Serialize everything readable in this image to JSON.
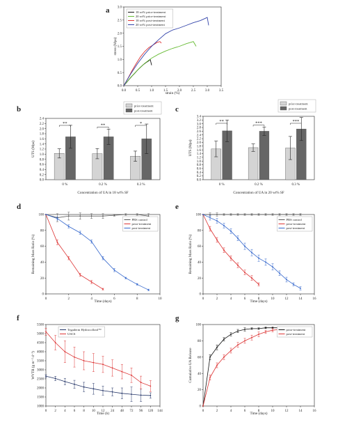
{
  "figure": {
    "panels": [
      {
        "id": "a",
        "letter": "a",
        "type": "line",
        "xlabel": "strain (%)",
        "ylabel": "stress (Mpa)",
        "xlim": [
          0,
          3.5
        ],
        "ylim": [
          0,
          3.0
        ],
        "xticks": [
          0,
          0.5,
          1,
          1.5,
          2,
          2.5,
          3,
          3.5
        ],
        "xtick_labels": [
          "0.0",
          "0.5",
          "1.0",
          "1.5",
          "2.0",
          "2.5",
          "3.0",
          "3.5"
        ],
        "yticks": [
          0,
          0.5,
          1,
          1.5,
          2,
          2.5,
          3
        ],
        "ytick_labels": [
          "0.0",
          "0.5",
          "1.0",
          "1.5",
          "2.0",
          "2.5",
          "3.0"
        ],
        "legend_position": "top-left",
        "series": [
          {
            "name": "18 wt% prior-treatment",
            "color": "#111111",
            "x": [
              0,
              0.1,
              0.2,
              0.3,
              0.4,
              0.5,
              0.6,
              0.7,
              0.8,
              0.9,
              0.95,
              1.0
            ],
            "y": [
              0,
              0.12,
              0.25,
              0.37,
              0.48,
              0.6,
              0.7,
              0.8,
              0.88,
              0.95,
              1.0,
              0.78
            ]
          },
          {
            "name": "20 wt% prior-treatment",
            "color": "#66bb33",
            "x": [
              0,
              0.25,
              0.5,
              0.75,
              1.0,
              1.25,
              1.5,
              1.75,
              2.0,
              2.25,
              2.5,
              2.6
            ],
            "y": [
              0,
              0.32,
              0.6,
              0.85,
              1.05,
              1.2,
              1.32,
              1.42,
              1.5,
              1.6,
              1.68,
              1.5
            ]
          },
          {
            "name": "18 wt% post-treatment",
            "color": "#dd3333",
            "x": [
              0,
              0.15,
              0.3,
              0.45,
              0.6,
              0.75,
              0.9,
              1.05,
              1.2,
              1.3,
              1.35
            ],
            "y": [
              0,
              0.28,
              0.58,
              0.85,
              1.1,
              1.3,
              1.45,
              1.55,
              1.65,
              1.68,
              1.62
            ]
          },
          {
            "name": "20 wt% post-treatment",
            "color": "#3344aa",
            "x": [
              0,
              0.25,
              0.5,
              0.75,
              1.0,
              1.25,
              1.5,
              1.75,
              2.0,
              2.25,
              2.5,
              2.75,
              3.0,
              3.05
            ],
            "y": [
              0,
              0.45,
              0.85,
              1.2,
              1.5,
              1.75,
              1.98,
              2.12,
              2.2,
              2.3,
              2.4,
              2.48,
              2.6,
              2.3
            ]
          }
        ]
      },
      {
        "id": "b",
        "letter": "b",
        "type": "bar",
        "xlabel": "Concentration of UA in 18 wt% SF",
        "ylabel": "UTS (Mpa)",
        "ylim": [
          0,
          2.4
        ],
        "yticks": [
          0,
          0.2,
          0.4,
          0.6,
          0.8,
          1.0,
          1.2,
          1.4,
          1.6,
          1.8,
          2.0,
          2.2,
          2.4
        ],
        "ytick_labels": [
          "0.0",
          "0.2",
          "0.4",
          "0.6",
          "0.8",
          "1.0",
          "1.2",
          "1.4",
          "1.6",
          "1.8",
          "2.0",
          "2.2",
          "2.4"
        ],
        "categories": [
          "0 %",
          "0.2 %",
          "0.3 %"
        ],
        "legend_position": "top-right",
        "series": [
          {
            "name": "prior-treatment",
            "color": "#d4d4d4",
            "values": [
              1.03,
              1.02,
              0.92
            ],
            "errors": [
              0.18,
              0.2,
              0.2
            ]
          },
          {
            "name": "post-treatment",
            "color": "#666666",
            "values": [
              1.68,
              1.68,
              1.6
            ],
            "errors": [
              0.45,
              0.3,
              0.58
            ]
          }
        ],
        "significance": [
          "**",
          "**",
          "*"
        ]
      },
      {
        "id": "c",
        "letter": "c",
        "type": "bar",
        "xlabel": "Concentration of UA in 20 wt% SF",
        "ylabel": "UTS (Mpa)",
        "ylim": [
          0,
          3.4
        ],
        "yticks": [
          0,
          0.2,
          0.4,
          0.6,
          0.8,
          1.0,
          1.2,
          1.4,
          1.6,
          1.8,
          2.0,
          2.2,
          2.4,
          2.6,
          2.8,
          3.0,
          3.2,
          3.4
        ],
        "ytick_labels": [
          "0.0",
          "0.2",
          "0.4",
          "0.6",
          "0.8",
          "1.0",
          "1.2",
          "1.4",
          "1.6",
          "1.8",
          "2.0",
          "2.2",
          "2.4",
          "2.6",
          "2.8",
          "3.0",
          "3.2",
          "3.4"
        ],
        "categories": [
          "0 %",
          "0.2 %",
          "0.3 %"
        ],
        "legend_position": "top-right",
        "series": [
          {
            "name": "prior-treatment",
            "color": "#d4d4d4",
            "values": [
              1.65,
              1.72,
              1.7
            ],
            "errors": [
              0.42,
              0.2,
              0.62
            ]
          },
          {
            "name": "post-treatment",
            "color": "#666666",
            "values": [
              2.62,
              2.6,
              2.72
            ],
            "errors": [
              0.58,
              0.22,
              0.62
            ]
          }
        ],
        "significance": [
          "**",
          "***",
          "***"
        ]
      },
      {
        "id": "d",
        "letter": "d",
        "type": "line",
        "xlabel": "Time (days)",
        "ylabel": "Remaining Mass Ratio (%)",
        "xlim": [
          0,
          10
        ],
        "ylim": [
          0,
          100
        ],
        "xticks": [
          0,
          2,
          4,
          6,
          8,
          10
        ],
        "xtick_labels": [
          "0",
          "2",
          "4",
          "6",
          "8",
          "10"
        ],
        "yticks": [
          0,
          20,
          40,
          60,
          80,
          100
        ],
        "ytick_labels": [
          "0",
          "20",
          "40",
          "60",
          "80",
          "100"
        ],
        "legend_position": "top-right",
        "series": [
          {
            "name": "PBS control",
            "color": "#555555",
            "x": [
              0,
              1,
              2,
              3,
              4,
              5,
              6,
              7,
              8,
              9
            ],
            "y": [
              100,
              96,
              98,
              98,
              98,
              98,
              99,
              100,
              100,
              98
            ],
            "err": [
              0,
              5,
              5,
              4,
              3,
              3,
              1,
              1,
              1,
              3
            ]
          },
          {
            "name": "prior-treatment",
            "color": "#dd3333",
            "x": [
              0,
              1,
              2,
              3,
              4,
              5
            ],
            "y": [
              100,
              65,
              45,
              24,
              15,
              6
            ],
            "err": [
              0,
              3,
              2,
              2,
              2,
              1
            ]
          },
          {
            "name": "post-treatment",
            "color": "#3366cc",
            "x": [
              0,
              1,
              2,
              3,
              4,
              5,
              6,
              7,
              8,
              9
            ],
            "y": [
              100,
              95,
              85,
              77,
              66,
              45,
              30,
              20,
              12,
              5
            ],
            "err": [
              0,
              2,
              2,
              2,
              2,
              2,
              2,
              1,
              1,
              1
            ]
          }
        ]
      },
      {
        "id": "e",
        "letter": "e",
        "type": "line",
        "xlabel": "Time (days)",
        "ylabel": "Remaining Mass Ratio (%)",
        "xlim": [
          0,
          16
        ],
        "ylim": [
          0,
          100
        ],
        "xticks": [
          0,
          2,
          4,
          6,
          8,
          10,
          12,
          14,
          16
        ],
        "xtick_labels": [
          "0",
          "2",
          "4",
          "6",
          "8",
          "10",
          "12",
          "14",
          "16"
        ],
        "yticks": [
          0,
          20,
          40,
          60,
          80,
          100
        ],
        "ytick_labels": [
          "0",
          "20",
          "40",
          "60",
          "80",
          "100"
        ],
        "legend_position": "top-right",
        "series": [
          {
            "name": "PBS control",
            "color": "#555555",
            "x": [
              0,
              1,
              2,
              3,
              4,
              5,
              6,
              7,
              8,
              9,
              10,
              11,
              12,
              13,
              14
            ],
            "y": [
              100,
              100,
              100,
              100,
              100,
              100,
              100,
              100,
              100,
              100,
              100,
              100,
              100,
              100,
              100
            ],
            "err": [
              0,
              2,
              2,
              1,
              1,
              1,
              1,
              1,
              1,
              1,
              1,
              1,
              1,
              1,
              1
            ]
          },
          {
            "name": "prior-treatment",
            "color": "#dd3333",
            "x": [
              0,
              1,
              2,
              3,
              4,
              5,
              6,
              7,
              8
            ],
            "y": [
              100,
              82,
              68,
              55,
              45,
              36,
              27,
              20,
              12
            ],
            "err": [
              0,
              3,
              3,
              3,
              3,
              3,
              3,
              3,
              2
            ]
          },
          {
            "name": "post-treatment",
            "color": "#3366cc",
            "x": [
              0,
              1,
              2,
              3,
              4,
              5,
              6,
              7,
              8,
              9,
              10,
              11,
              12,
              13,
              14
            ],
            "y": [
              100,
              96,
              92,
              86,
              79,
              70,
              60,
              52,
              45,
              40,
              34,
              26,
              18,
              12,
              7
            ],
            "err": [
              0,
              3,
              3,
              3,
              3,
              3,
              4,
              4,
              4,
              4,
              4,
              3,
              3,
              2,
              2
            ]
          }
        ]
      },
      {
        "id": "f",
        "letter": "f",
        "type": "line",
        "xlabel": "Time (h)",
        "ylabel": "WVTR (g m⁻² d⁻¹)",
        "xlim": [
          0,
          144
        ],
        "ylim": [
          1000,
          5500
        ],
        "xticks": [
          0,
          12,
          24,
          36,
          48,
          60,
          72,
          84,
          96,
          108,
          120,
          132,
          144
        ],
        "xtick_labels": [
          "0",
          "2",
          "4",
          "6",
          "8",
          "10",
          "12",
          "24",
          "48",
          "72",
          "96",
          "120",
          "144"
        ],
        "yticks": [
          1000,
          1500,
          2000,
          2500,
          3000,
          3500,
          4000,
          4500,
          5000,
          5500
        ],
        "ytick_labels": [
          "1000",
          "1500",
          "2000",
          "2500",
          "3000",
          "3500",
          "4000",
          "4500",
          "5000",
          "5500"
        ],
        "legend_position": "top-right",
        "series": [
          {
            "name": "Tegaderm Hydrocolloid™",
            "color": "#223366",
            "x": [
              0,
              12,
              24,
              36,
              48,
              60,
              72,
              84,
              96,
              108,
              120,
              132
            ],
            "y": [
              2650,
              2520,
              2350,
              2200,
              2050,
              1950,
              1850,
              1780,
              1700,
              1650,
              1600,
              1580
            ],
            "err": [
              80,
              120,
              180,
              220,
              260,
              300,
              250,
              220,
              300,
              400,
              350,
              150
            ]
          },
          {
            "name": "USCS",
            "color": "#dd3333",
            "x": [
              0,
              12,
              24,
              36,
              48,
              60,
              72,
              84,
              96,
              108,
              120,
              132
            ],
            "y": [
              5100,
              4500,
              4000,
              3700,
              3500,
              3400,
              3300,
              3100,
              2900,
              2700,
              2300,
              2100
            ],
            "err": [
              200,
              400,
              600,
              550,
              500,
              500,
              450,
              450,
              400,
              400,
              350,
              300
            ]
          }
        ]
      },
      {
        "id": "g",
        "letter": "g",
        "type": "line",
        "xlabel": "Time (days)",
        "ylabel": "Cumulative UA Release",
        "xlim": [
          0,
          16
        ],
        "ylim": [
          0,
          100
        ],
        "xticks": [
          0,
          2,
          4,
          6,
          8,
          10,
          12,
          14,
          16
        ],
        "xtick_labels": [
          "0",
          "2",
          "4",
          "6",
          "8",
          "10",
          "12",
          "14",
          "16"
        ],
        "yticks": [
          0,
          20,
          40,
          60,
          80,
          100
        ],
        "ytick_labels": [
          "0",
          "20",
          "40",
          "60",
          "80",
          "100"
        ],
        "legend_position": "top-right",
        "series": [
          {
            "name": "prior-treatment",
            "color": "#111111",
            "x": [
              0,
              1,
              2,
              3,
              4,
              5,
              6,
              7,
              8,
              9,
              10,
              11,
              12,
              13,
              14
            ],
            "y": [
              0,
              60,
              72,
              82,
              88,
              92,
              94,
              95,
              95,
              96,
              96,
              96,
              96,
              96,
              96
            ],
            "err": [
              0,
              3,
              3,
              2,
              2,
              2,
              2,
              1,
              1,
              1,
              1,
              1,
              1,
              1,
              1
            ]
          },
          {
            "name": "post-treatment",
            "color": "#dd3333",
            "x": [
              0,
              1,
              2,
              3,
              4,
              5,
              6,
              7,
              8,
              9,
              10,
              11,
              12,
              13,
              14
            ],
            "y": [
              0,
              35,
              50,
              60,
              68,
              75,
              80,
              84,
              88,
              91,
              93,
              94,
              94,
              94,
              94
            ],
            "err": [
              0,
              3,
              3,
              3,
              3,
              3,
              3,
              3,
              3,
              2,
              2,
              2,
              2,
              2,
              2
            ]
          }
        ]
      }
    ]
  }
}
